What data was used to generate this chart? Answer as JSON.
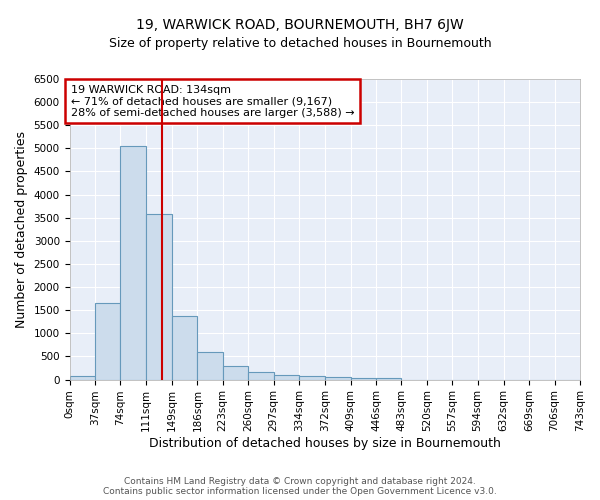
{
  "title": "19, WARWICK ROAD, BOURNEMOUTH, BH7 6JW",
  "subtitle": "Size of property relative to detached houses in Bournemouth",
  "xlabel": "Distribution of detached houses by size in Bournemouth",
  "ylabel": "Number of detached properties",
  "bin_edges": [
    0,
    37,
    74,
    111,
    149,
    186,
    223,
    260,
    297,
    334,
    372,
    409,
    446,
    483,
    520,
    557,
    594,
    632,
    669,
    706,
    743
  ],
  "bar_heights": [
    75,
    1650,
    5050,
    3580,
    1380,
    590,
    285,
    155,
    110,
    75,
    50,
    35,
    25,
    0,
    0,
    0,
    0,
    0,
    0,
    0
  ],
  "bar_color": "#ccdcec",
  "bar_edge_color": "#6699bb",
  "bar_linewidth": 0.8,
  "property_size": 134,
  "red_line_color": "#cc0000",
  "ylim": [
    0,
    6500
  ],
  "yticks": [
    0,
    500,
    1000,
    1500,
    2000,
    2500,
    3000,
    3500,
    4000,
    4500,
    5000,
    5500,
    6000,
    6500
  ],
  "annotation_text": "19 WARWICK ROAD: 134sqm\n← 71% of detached houses are smaller (9,167)\n28% of semi-detached houses are larger (3,588) →",
  "annotation_box_color": "#ffffff",
  "annotation_box_edge": "#cc0000",
  "footer1": "Contains HM Land Registry data © Crown copyright and database right 2024.",
  "footer2": "Contains public sector information licensed under the Open Government Licence v3.0.",
  "fig_bg_color": "#ffffff",
  "plot_bg_color": "#e8eef8",
  "grid_color": "#ffffff",
  "title_fontsize": 10,
  "subtitle_fontsize": 9,
  "axis_label_fontsize": 9,
  "tick_fontsize": 7.5,
  "annotation_fontsize": 8,
  "footer_fontsize": 6.5
}
